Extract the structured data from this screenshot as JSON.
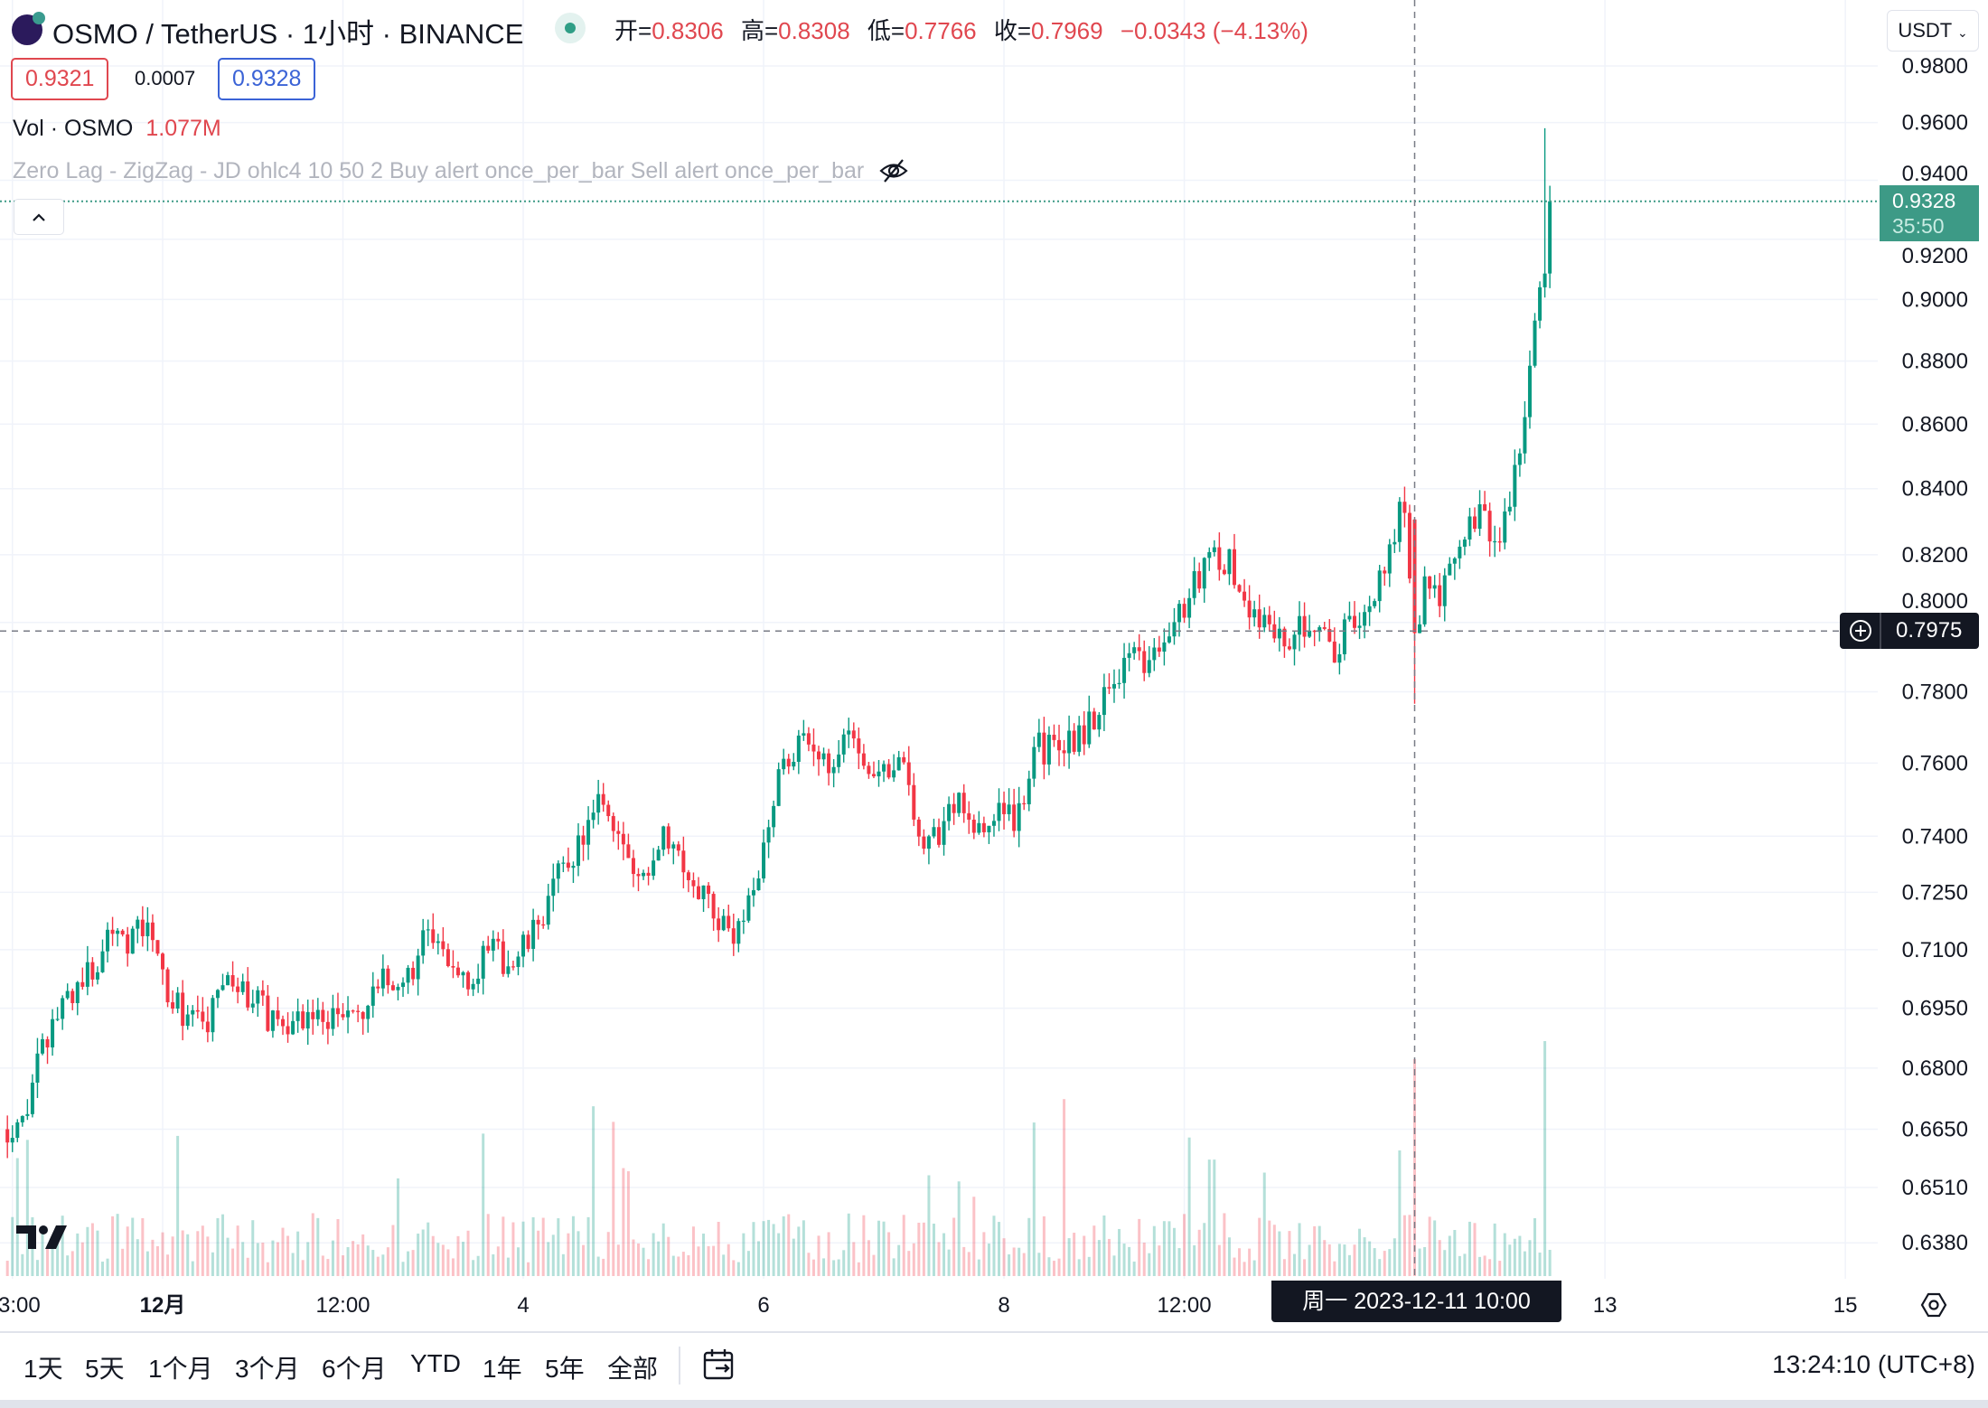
{
  "header": {
    "title": "OSMO / TetherUS · 1小时 · BINANCE",
    "ohlc": [
      {
        "label": "开=",
        "value": "0.8306"
      },
      {
        "label": "高=",
        "value": "0.8308"
      },
      {
        "label": "低=",
        "value": "0.7766"
      },
      {
        "label": "收=",
        "value": "0.7969"
      }
    ],
    "change": "−0.0343 (−4.13%)",
    "bid": "0.9321",
    "spread": "0.0007",
    "ask": "0.9328",
    "volume_label": "Vol · OSMO",
    "volume_value": "1.077M",
    "indicator": "Zero Lag - ZigZag - JD ohlc4 10 50 2 Buy alert once_per_bar Sell alert once_per_bar",
    "indicator_icon": "eye-off-icon"
  },
  "currency_button": "USDT",
  "price_label": {
    "price": "0.9328",
    "countdown": "35:50"
  },
  "crosshair": {
    "price": "0.7975",
    "date": "周一 2023-12-11   10:00"
  },
  "timeframes": [
    "1天",
    "5天",
    "1个月",
    "3个月",
    "6个月",
    "YTD",
    "1年",
    "5年",
    "全部"
  ],
  "clock": "13:24:10 (UTC+8)",
  "colors": {
    "up": "#089981",
    "down": "#f23645",
    "last_price": "#3d9a86"
  },
  "chart_data": {
    "type": "candlestick",
    "interval": "1h",
    "y_scale": "log",
    "ylim": [
      0.632,
      0.985
    ],
    "grid": true,
    "y_ticks": [
      "0.9800",
      "0.9600",
      "0.9400",
      "0.9200",
      "0.9000",
      "0.8800",
      "0.8600",
      "0.8400",
      "0.8200",
      "0.8000",
      "0.7800",
      "0.7600",
      "0.7400",
      "0.7250",
      "0.7100",
      "0.6950",
      "0.6800",
      "0.6650",
      "0.6510",
      "0.6380"
    ],
    "x_ticks": [
      {
        "label": "3:00",
        "time": "2023-11-29 18:00"
      },
      {
        "label": "12月",
        "time": "2023-12-01 00:00"
      },
      {
        "label": "12:00",
        "time": "2023-12-02 12:00"
      },
      {
        "label": "4",
        "time": "2023-12-04 00:00"
      },
      {
        "label": "6",
        "time": "2023-12-06 00:00"
      },
      {
        "label": "8",
        "time": "2023-12-08 00:00"
      },
      {
        "label": "12:00",
        "time": "2023-12-09 12:00"
      },
      {
        "label": "13",
        "time": "2023-12-13 00:00"
      },
      {
        "label": "15",
        "time": "2023-12-15 00:00"
      }
    ],
    "approx_close_path": [
      [
        "2023-11-29 17:00",
        0.665
      ],
      [
        "2023-11-29 21:00",
        0.671
      ],
      [
        "2023-11-30 00:00",
        0.684
      ],
      [
        "2023-11-30 04:00",
        0.697
      ],
      [
        "2023-11-30 07:00",
        0.701
      ],
      [
        "2023-11-30 11:00",
        0.706
      ],
      [
        "2023-11-30 14:00",
        0.718
      ],
      [
        "2023-11-30 17:00",
        0.713
      ],
      [
        "2023-11-30 21:00",
        0.716
      ],
      [
        "2023-11-30 23:00",
        0.706
      ],
      [
        "2023-12-01 02:00",
        0.697
      ],
      [
        "2023-12-01 06:00",
        0.692
      ],
      [
        "2023-12-01 09:00",
        0.691
      ],
      [
        "2023-12-01 12:00",
        0.701
      ],
      [
        "2023-12-01 16:00",
        0.7
      ],
      [
        "2023-12-01 21:00",
        0.693
      ],
      [
        "2023-12-02 02:00",
        0.692
      ],
      [
        "2023-12-02 09:00",
        0.693
      ],
      [
        "2023-12-02 16:00",
        0.693
      ],
      [
        "2023-12-02 20:00",
        0.701
      ],
      [
        "2023-12-03 01:00",
        0.703
      ],
      [
        "2023-12-03 04:00",
        0.713
      ],
      [
        "2023-12-03 08:00",
        0.708
      ],
      [
        "2023-12-03 13:00",
        0.704
      ],
      [
        "2023-12-03 18:00",
        0.709
      ],
      [
        "2023-12-03 22:00",
        0.706
      ],
      [
        "2023-12-04 02:00",
        0.714
      ],
      [
        "2023-12-04 07:00",
        0.729
      ],
      [
        "2023-12-04 12:00",
        0.74
      ],
      [
        "2023-12-04 16:00",
        0.75
      ],
      [
        "2023-12-04 20:00",
        0.737
      ],
      [
        "2023-12-04 23:00",
        0.726
      ],
      [
        "2023-12-05 04:00",
        0.743
      ],
      [
        "2023-12-05 08:00",
        0.733
      ],
      [
        "2023-12-05 12:00",
        0.724
      ],
      [
        "2023-12-05 16:00",
        0.716
      ],
      [
        "2023-12-05 20:00",
        0.714
      ],
      [
        "2023-12-05 23:00",
        0.733
      ],
      [
        "2023-12-06 03:00",
        0.757
      ],
      [
        "2023-12-06 07:00",
        0.766
      ],
      [
        "2023-12-06 12:00",
        0.759
      ],
      [
        "2023-12-06 17:00",
        0.77
      ],
      [
        "2023-12-06 22:00",
        0.757
      ],
      [
        "2023-12-07 03:00",
        0.762
      ],
      [
        "2023-12-07 07:00",
        0.741
      ],
      [
        "2023-12-07 11:00",
        0.74
      ],
      [
        "2023-12-07 15:00",
        0.752
      ],
      [
        "2023-12-07 19:00",
        0.74
      ],
      [
        "2023-12-08 00:00",
        0.747
      ],
      [
        "2023-12-08 03:00",
        0.745
      ],
      [
        "2023-12-08 06:00",
        0.764
      ],
      [
        "2023-12-08 10:00",
        0.764
      ],
      [
        "2023-12-08 15:00",
        0.767
      ],
      [
        "2023-12-08 20:00",
        0.778
      ],
      [
        "2023-12-09 00:00",
        0.79
      ],
      [
        "2023-12-09 06:00",
        0.788
      ],
      [
        "2023-12-09 10:00",
        0.8
      ],
      [
        "2023-12-09 14:00",
        0.811
      ],
      [
        "2023-12-09 17:00",
        0.821
      ],
      [
        "2023-12-09 21:00",
        0.817
      ],
      [
        "2023-12-10 01:00",
        0.803
      ],
      [
        "2023-12-10 05:00",
        0.8
      ],
      [
        "2023-12-10 08:00",
        0.794
      ],
      [
        "2023-12-10 12:00",
        0.8
      ],
      [
        "2023-12-10 15:00",
        0.803
      ],
      [
        "2023-12-10 17:00",
        0.79
      ],
      [
        "2023-12-10 21:00",
        0.8
      ],
      [
        "2023-12-11 01:00",
        0.803
      ],
      [
        "2023-12-11 05:00",
        0.823
      ],
      [
        "2023-12-11 08:00",
        0.836
      ],
      [
        "2023-12-11 10:00",
        0.7969
      ],
      [
        "2023-12-11 12:00",
        0.811
      ],
      [
        "2023-12-11 16:00",
        0.809
      ],
      [
        "2023-12-11 20:00",
        0.825
      ],
      [
        "2023-12-12 00:00",
        0.832
      ],
      [
        "2023-12-12 02:00",
        0.823
      ],
      [
        "2023-12-12 05:00",
        0.834
      ],
      [
        "2023-12-12 07:00",
        0.856
      ],
      [
        "2023-12-12 10:00",
        0.888
      ],
      [
        "2023-12-12 12:00",
        0.912
      ],
      [
        "2023-12-12 13:00",
        0.9328
      ]
    ],
    "highlighted_candle": {
      "time": "2023-12-11 10:00",
      "open": 0.8306,
      "high": 0.8308,
      "low": 0.7766,
      "close": 0.7969
    },
    "session_high": 0.958,
    "last_price": 0.9328,
    "crosshair_price": 0.7975,
    "volume_series": "Vol · OSMO"
  }
}
